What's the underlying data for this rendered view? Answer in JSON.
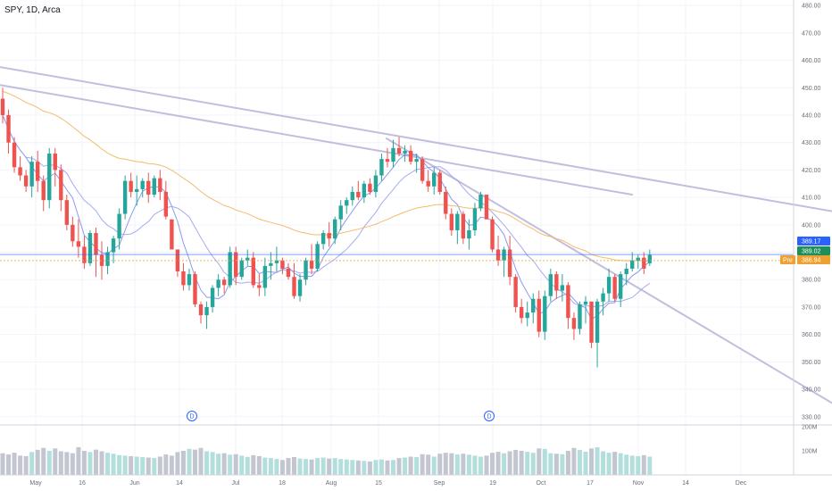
{
  "header": {
    "symbol_label": "SPY, 1D, Arca"
  },
  "colors": {
    "up": "#26a69a",
    "down": "#ef5350",
    "ma_fast": "#7e8ef0",
    "ma_mid": "#9aa4ec",
    "ma_slow": "#f3b55d",
    "trendline": "#b7b3d9",
    "last_price_tag": "#2962ff",
    "prev_close_tag": "#1e8e5a",
    "premarket_tag": "#f0a030",
    "volume_up": "#b2dfdb",
    "volume_down": "#c3c6d0",
    "dividend_marker": "#2962ff"
  },
  "price_tags": {
    "last": "389.17",
    "prev_close": "389.02",
    "premarket_label": "Pre",
    "premarket": "386.94"
  },
  "dividend_markers": [
    {
      "label": "D",
      "date": "Jun 16"
    },
    {
      "label": "D",
      "date": "Sep 16"
    }
  ],
  "chart_data": {
    "type": "candlestick",
    "symbol": "SPY",
    "interval": "1D",
    "exchange": "Arca",
    "price_axis": {
      "range": [
        327,
        482
      ],
      "ticks": [
        "330.00",
        "340.00",
        "350.00",
        "360.00",
        "370.00",
        "380.00",
        "390.00",
        "400.00",
        "410.00",
        "420.00",
        "430.00",
        "440.00",
        "450.00",
        "460.00",
        "470.00",
        "480.00"
      ]
    },
    "volume_axis": {
      "ticks": [
        "100M",
        "200M"
      ],
      "max": 200
    },
    "time_axis": {
      "labels": [
        "May",
        "16",
        "Jun",
        "14",
        "Jul",
        "18",
        "Aug",
        "15",
        "Sep",
        "19",
        "Oct",
        "17",
        "Nov",
        "14",
        "Dec"
      ]
    },
    "ohlc_columns": [
      "open",
      "high",
      "low",
      "close",
      "volume_millions"
    ],
    "series": [
      [
        446,
        450,
        437,
        440,
        90
      ],
      [
        440,
        442,
        426,
        430,
        85
      ],
      [
        430,
        432,
        419,
        421,
        92
      ],
      [
        421,
        425,
        416,
        418,
        80
      ],
      [
        418,
        420,
        412,
        414,
        78
      ],
      [
        414,
        425,
        410,
        423,
        95
      ],
      [
        423,
        427,
        412,
        416,
        104
      ],
      [
        416,
        418,
        405,
        409,
        112
      ],
      [
        409,
        428,
        406,
        426,
        100
      ],
      [
        426,
        428,
        414,
        420,
        110
      ],
      [
        420,
        422,
        405,
        409,
        98
      ],
      [
        409,
        411,
        398,
        400,
        95
      ],
      [
        400,
        403,
        392,
        394,
        90
      ],
      [
        394,
        402,
        388,
        392,
        115
      ],
      [
        392,
        396,
        384,
        386,
        100
      ],
      [
        386,
        398,
        385,
        397,
        95
      ],
      [
        397,
        399,
        381,
        389,
        105
      ],
      [
        389,
        394,
        380,
        385,
        98
      ],
      [
        385,
        392,
        382,
        390,
        92
      ],
      [
        390,
        396,
        386,
        395,
        88
      ],
      [
        395,
        406,
        391,
        404,
        82
      ],
      [
        404,
        418,
        402,
        416,
        80
      ],
      [
        416,
        419,
        410,
        412,
        78
      ],
      [
        412,
        418,
        407,
        413,
        76
      ],
      [
        413,
        417,
        410,
        416,
        74
      ],
      [
        416,
        419,
        408,
        411,
        72
      ],
      [
        411,
        418,
        410,
        417,
        70
      ],
      [
        417,
        420,
        409,
        412,
        76
      ],
      [
        412,
        416,
        402,
        403,
        85
      ],
      [
        402,
        395,
        391,
        391,
        80
      ],
      [
        391,
        387,
        381,
        383,
        95
      ],
      [
        383,
        386,
        376,
        378,
        100
      ],
      [
        378,
        384,
        376,
        382,
        108
      ],
      [
        382,
        383,
        370,
        371,
        105
      ],
      [
        371,
        372,
        364,
        367,
        112
      ],
      [
        367,
        372,
        362,
        370,
        98
      ],
      [
        370,
        378,
        368,
        377,
        95
      ],
      [
        377,
        382,
        374,
        380,
        88
      ],
      [
        380,
        381,
        375,
        378,
        90
      ],
      [
        378,
        392,
        377,
        390,
        84
      ],
      [
        390,
        392,
        378,
        381,
        86
      ],
      [
        381,
        388,
        380,
        387,
        80
      ],
      [
        387,
        391,
        385,
        388,
        75
      ],
      [
        388,
        390,
        377,
        378,
        82
      ],
      [
        378,
        382,
        374,
        377,
        78
      ],
      [
        377,
        388,
        374,
        385,
        72
      ],
      [
        385,
        390,
        380,
        386,
        70
      ],
      [
        386,
        392,
        383,
        387,
        66
      ],
      [
        387,
        388,
        382,
        384,
        62
      ],
      [
        384,
        386,
        380,
        381,
        70
      ],
      [
        381,
        386,
        373,
        374,
        74
      ],
      [
        374,
        382,
        372,
        380,
        68
      ],
      [
        380,
        388,
        378,
        387,
        66
      ],
      [
        387,
        393,
        382,
        384,
        64
      ],
      [
        384,
        394,
        383,
        393,
        70
      ],
      [
        393,
        398,
        391,
        397,
        72
      ],
      [
        397,
        401,
        392,
        395,
        68
      ],
      [
        395,
        403,
        393,
        402,
        70
      ],
      [
        402,
        409,
        398,
        407,
        66
      ],
      [
        407,
        410,
        404,
        409,
        64
      ],
      [
        409,
        414,
        407,
        412,
        62
      ],
      [
        412,
        416,
        409,
        410,
        60
      ],
      [
        410,
        416,
        408,
        415,
        58
      ],
      [
        415,
        417,
        411,
        412,
        56
      ],
      [
        412,
        420,
        410,
        418,
        62
      ],
      [
        418,
        426,
        416,
        424,
        64
      ],
      [
        424,
        428,
        421,
        423,
        60
      ],
      [
        423,
        431,
        421,
        428,
        62
      ],
      [
        428,
        432,
        425,
        426,
        70
      ],
      [
        426,
        429,
        423,
        427,
        72
      ],
      [
        427,
        429,
        422,
        423,
        76
      ],
      [
        423,
        426,
        419,
        424,
        74
      ],
      [
        424,
        425,
        415,
        416,
        86
      ],
      [
        416,
        420,
        412,
        414,
        84
      ],
      [
        414,
        421,
        411,
        419,
        76
      ],
      [
        419,
        420,
        411,
        412,
        88
      ],
      [
        412,
        414,
        402,
        404,
        92
      ],
      [
        404,
        406,
        396,
        398,
        90
      ],
      [
        398,
        405,
        393,
        404,
        85
      ],
      [
        404,
        405,
        393,
        395,
        88
      ],
      [
        395,
        402,
        391,
        398,
        84
      ],
      [
        398,
        408,
        396,
        406,
        80
      ],
      [
        406,
        412,
        405,
        411,
        76
      ],
      [
        411,
        409,
        402,
        402,
        80
      ],
      [
        402,
        403,
        390,
        391,
        92
      ],
      [
        391,
        396,
        385,
        387,
        96
      ],
      [
        387,
        392,
        381,
        391,
        90
      ],
      [
        391,
        396,
        378,
        381,
        98
      ],
      [
        381,
        382,
        368,
        370,
        104
      ],
      [
        370,
        373,
        364,
        366,
        100
      ],
      [
        366,
        372,
        363,
        368,
        96
      ],
      [
        368,
        375,
        364,
        373,
        92
      ],
      [
        373,
        376,
        359,
        361,
        110
      ],
      [
        361,
        376,
        358,
        374,
        108
      ],
      [
        374,
        384,
        372,
        382,
        90
      ],
      [
        382,
        383,
        373,
        376,
        88
      ],
      [
        376,
        382,
        372,
        378,
        86
      ],
      [
        378,
        379,
        362,
        366,
        100
      ],
      [
        366,
        368,
        358,
        362,
        112
      ],
      [
        362,
        372,
        360,
        371,
        104
      ],
      [
        371,
        374,
        364,
        372,
        96
      ],
      [
        372,
        369,
        355,
        357,
        110
      ],
      [
        357,
        373,
        348,
        372,
        115
      ],
      [
        372,
        377,
        367,
        375,
        98
      ],
      [
        375,
        384,
        372,
        381,
        92
      ],
      [
        381,
        382,
        372,
        373,
        96
      ],
      [
        373,
        383,
        370,
        382,
        90
      ],
      [
        382,
        386,
        378,
        384,
        84
      ],
      [
        384,
        390,
        383,
        387,
        80
      ],
      [
        387,
        389,
        384,
        388,
        78
      ],
      [
        388,
        390,
        382,
        384,
        82
      ],
      [
        386,
        391,
        385,
        389,
        76
      ]
    ]
  }
}
